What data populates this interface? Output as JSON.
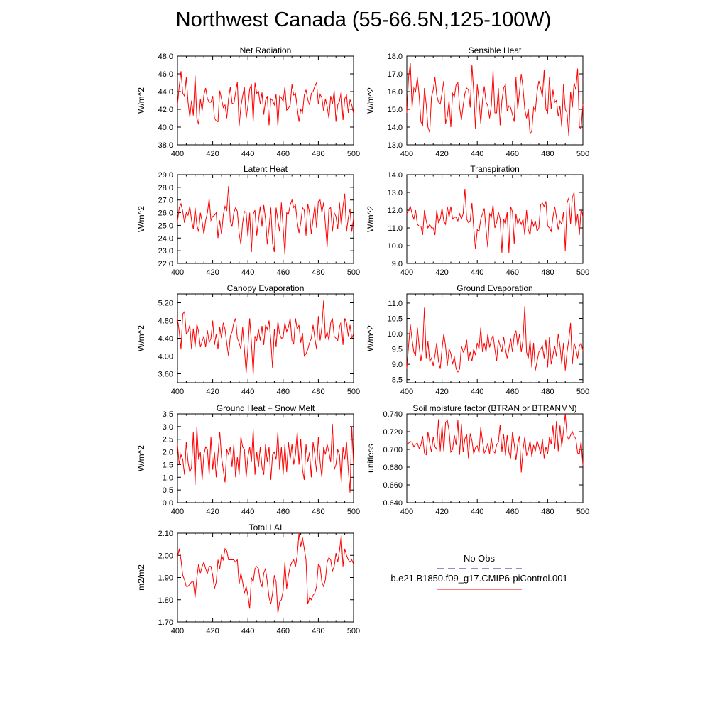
{
  "title": "Northwest Canada (55-66.5N,125-100W)",
  "legend": {
    "obs_label": "No Obs",
    "obs_color": "#1f1fa0",
    "model_label": "b.e21.B1850.f09_g17.CMIP6-piControl.001",
    "model_color": "#ff0000"
  },
  "line_color": "#ff0000",
  "chart_data": [
    {
      "type": "line",
      "title": "Net Radiation",
      "ylabel": "W/m^2",
      "xlim": [
        400,
        500
      ],
      "ylim": [
        38.0,
        48.0
      ],
      "xticks": [
        400,
        420,
        440,
        460,
        480,
        500
      ],
      "yticks": [
        "38.0",
        "40.0",
        "42.0",
        "44.0",
        "46.0",
        "48.0"
      ],
      "x_start": 400,
      "values": [
        42.5,
        44.6,
        46.3,
        43.8,
        43.5,
        45.6,
        42.8,
        41.1,
        43.0,
        41.3,
        45.8,
        41.0,
        40.3,
        43.2,
        41.8,
        43.6,
        44.4,
        43.2,
        42.8,
        42.8,
        43.5,
        41.0,
        40.7,
        40.6,
        44.1,
        43.2,
        42.2,
        42.5,
        41.0,
        43.2,
        44.5,
        42.7,
        42.6,
        43.9,
        45.1,
        40.1,
        42.3,
        43.5,
        44.5,
        41.0,
        42.4,
        44.3,
        44.8,
        40.6,
        45.0,
        43.8,
        44.0,
        42.6,
        43.9,
        41.4,
        43.0,
        43.5,
        40.2,
        43.2,
        43.0,
        42.5,
        43.7,
        40.1,
        43.5,
        43.3,
        42.9,
        44.5,
        41.9,
        42.1,
        42.5,
        44.8,
        43.6,
        43.8,
        42.2,
        40.6,
        42.0,
        41.6,
        43.6,
        44.2,
        43.1,
        42.5,
        43.8,
        44.0,
        44.6,
        45.0,
        42.6,
        43.7,
        43.3,
        41.8,
        43.2,
        42.3,
        41.0,
        43.5,
        42.6,
        44.1,
        40.6,
        42.5,
        42.9,
        44.0,
        40.8,
        43.2,
        43.6,
        41.6,
        43.1,
        42.5,
        41.5
      ]
    },
    {
      "type": "line",
      "title": "Sensible Heat",
      "ylabel": "W/m^2",
      "xlim": [
        400,
        500
      ],
      "ylim": [
        13.0,
        18.0
      ],
      "xticks": [
        400,
        420,
        440,
        460,
        480,
        500
      ],
      "yticks": [
        "13.0",
        "14.0",
        "15.0",
        "16.0",
        "17.0",
        "18.0"
      ],
      "x_start": 400,
      "values": [
        14.8,
        16.8,
        17.6,
        15.1,
        16.2,
        16.0,
        16.8,
        15.8,
        14.3,
        14.1,
        16.2,
        15.3,
        14.0,
        13.7,
        15.7,
        16.1,
        16.8,
        15.8,
        15.4,
        15.3,
        15.9,
        16.6,
        14.2,
        14.6,
        15.5,
        14.0,
        15.9,
        15.7,
        16.4,
        16.5,
        15.1,
        14.4,
        15.2,
        15.9,
        16.2,
        16.1,
        15.1,
        17.5,
        16.0,
        13.9,
        16.4,
        15.5,
        14.2,
        15.5,
        16.3,
        15.4,
        15.2,
        14.5,
        15.2,
        17.2,
        14.8,
        14.8,
        16.2,
        14.1,
        15.5,
        16.2,
        16.4,
        14.9,
        15.2,
        15.1,
        14.7,
        14.3,
        16.8,
        15.0,
        16.0,
        17.0,
        16.2,
        15.0,
        14.5,
        15.0,
        13.6,
        13.8,
        15.1,
        14.9,
        16.0,
        16.6,
        16.2,
        15.7,
        17.2,
        15.0,
        14.8,
        16.8,
        15.0,
        16.1,
        15.4,
        15.5,
        14.6,
        15.2,
        14.0,
        16.4,
        15.0,
        14.8,
        13.5,
        16.0,
        15.1,
        16.5,
        16.1,
        17.3,
        14.0,
        13.9,
        15.3
      ]
    },
    {
      "type": "line",
      "title": "Latent Heat",
      "ylabel": "W/m^2",
      "xlim": [
        400,
        500
      ],
      "ylim": [
        22.0,
        29.0
      ],
      "xticks": [
        400,
        420,
        440,
        460,
        480,
        500
      ],
      "yticks": [
        "22.0",
        "23.0",
        "24.0",
        "25.0",
        "26.0",
        "27.0",
        "28.0",
        "29.0"
      ],
      "x_start": 400,
      "values": [
        25.3,
        26.4,
        26.7,
        26.1,
        25.2,
        26.0,
        25.8,
        26.5,
        25.4,
        24.7,
        26.4,
        25.0,
        24.5,
        26.0,
        25.3,
        24.3,
        25.4,
        26.0,
        27.1,
        25.4,
        25.7,
        25.8,
        26.0,
        24.0,
        25.4,
        24.3,
        25.8,
        26.5,
        26.2,
        28.1,
        25.3,
        24.9,
        26.0,
        26.4,
        26.1,
        24.4,
        23.5,
        25.2,
        26.1,
        26.0,
        24.1,
        26.0,
        22.9,
        25.9,
        26.2,
        24.2,
        25.4,
        26.5,
        24.9,
        26.6,
        25.5,
        23.5,
        24.8,
        26.4,
        23.6,
        22.9,
        26.4,
        25.4,
        24.5,
        26.8,
        24.8,
        22.7,
        26.0,
        25.9,
        26.6,
        27.0,
        26.4,
        26.6,
        25.3,
        24.4,
        25.2,
        26.4,
        26.2,
        24.2,
        26.7,
        26.0,
        24.3,
        25.5,
        26.6,
        24.8,
        26.9,
        27.0,
        26.0,
        26.8,
        25.1,
        23.3,
        26.3,
        26.4,
        24.5,
        26.0,
        25.7,
        24.7,
        26.8,
        25.0,
        26.5,
        27.5,
        24.5,
        25.6,
        26.3,
        24.5,
        25.6
      ]
    },
    {
      "type": "line",
      "title": "Transpiration",
      "ylabel": "W/m^2",
      "xlim": [
        400,
        500
      ],
      "ylim": [
        9.0,
        14.0
      ],
      "xticks": [
        400,
        420,
        440,
        460,
        480,
        500
      ],
      "yticks": [
        "9.0",
        "10.0",
        "11.0",
        "12.0",
        "13.0",
        "14.0"
      ],
      "x_start": 400,
      "values": [
        11.8,
        12.0,
        12.2,
        11.8,
        11.5,
        12.0,
        11.2,
        11.1,
        11.1,
        10.6,
        12.0,
        11.4,
        11.0,
        11.2,
        11.0,
        11.0,
        10.6,
        12.0,
        11.3,
        11.5,
        12.1,
        11.4,
        11.2,
        12.2,
        11.6,
        12.2,
        11.5,
        11.6,
        11.6,
        11.4,
        11.8,
        11.5,
        11.8,
        13.2,
        11.5,
        11.3,
        11.4,
        12.4,
        11.0,
        9.8,
        10.9,
        10.8,
        11.5,
        11.8,
        12.1,
        10.9,
        9.9,
        11.8,
        11.6,
        12.3,
        11.0,
        11.3,
        11.9,
        11.5,
        9.6,
        11.5,
        11.2,
        11.9,
        9.6,
        12.2,
        11.9,
        10.1,
        11.8,
        11.2,
        11.5,
        11.2,
        11.5,
        10.6,
        12.0,
        10.9,
        10.6,
        11.5,
        11.1,
        11.4,
        10.8,
        11.0,
        12.3,
        12.4,
        12.2,
        12.5,
        11.1,
        11.0,
        10.8,
        11.6,
        12.2,
        11.6,
        10.9,
        11.4,
        11.2,
        11.9,
        9.7,
        12.4,
        12.7,
        11.2,
        12.7,
        13.0,
        11.1,
        11.8,
        10.6,
        12.1,
        11.6
      ]
    },
    {
      "type": "line",
      "title": "Canopy Evaporation",
      "ylabel": "W/m^2",
      "xlim": [
        400,
        500
      ],
      "ylim": [
        3.4,
        5.4
      ],
      "xticks": [
        400,
        420,
        440,
        460,
        480,
        500
      ],
      "yticks": [
        "3.60",
        "4.00",
        "4.40",
        "4.80",
        "5.20"
      ],
      "x_start": 400,
      "values": [
        4.85,
        4.55,
        4.15,
        4.95,
        5.0,
        4.5,
        4.55,
        4.7,
        4.15,
        4.62,
        4.2,
        4.72,
        4.55,
        4.2,
        4.33,
        4.45,
        4.2,
        4.58,
        4.3,
        4.4,
        4.8,
        4.25,
        4.5,
        4.15,
        4.65,
        4.4,
        4.75,
        4.6,
        4.28,
        4.0,
        4.45,
        4.55,
        4.75,
        4.85,
        4.4,
        4.3,
        4.15,
        4.65,
        4.15,
        3.62,
        4.18,
        4.85,
        4.3,
        3.58,
        4.45,
        4.35,
        4.6,
        4.35,
        4.68,
        4.25,
        4.7,
        4.6,
        4.8,
        4.35,
        3.72,
        4.6,
        4.2,
        4.78,
        4.5,
        4.4,
        4.42,
        4.75,
        4.55,
        4.65,
        4.85,
        4.35,
        4.28,
        4.85,
        4.6,
        4.7,
        4.3,
        4.52,
        4.0,
        4.05,
        4.15,
        4.3,
        4.4,
        4.7,
        4.4,
        4.15,
        4.9,
        4.35,
        4.65,
        5.25,
        4.4,
        4.55,
        4.35,
        4.75,
        4.85,
        4.45,
        4.4,
        4.35,
        4.65,
        4.78,
        4.25,
        4.85,
        4.75,
        4.45,
        4.7,
        4.4,
        4.5
      ]
    },
    {
      "type": "line",
      "title": "Ground Evaporation",
      "ylabel": "W/m^2",
      "xlim": [
        400,
        500
      ],
      "ylim": [
        8.4,
        11.3
      ],
      "xticks": [
        400,
        420,
        440,
        460,
        480,
        500
      ],
      "yticks": [
        "8.5",
        "9.0",
        "9.5",
        "10.0",
        "10.5",
        "11.0"
      ],
      "x_start": 400,
      "values": [
        8.85,
        9.6,
        10.3,
        9.8,
        9.4,
        9.3,
        10.2,
        9.6,
        9.1,
        9.5,
        10.85,
        9.2,
        9.75,
        9.1,
        9.2,
        8.95,
        9.3,
        9.7,
        9.1,
        8.85,
        9.5,
        10.0,
        9.6,
        8.95,
        9.5,
        9.35,
        9.0,
        9.25,
        8.85,
        8.75,
        8.85,
        9.6,
        9.4,
        9.5,
        9.8,
        9.1,
        9.4,
        9.1,
        9.5,
        9.3,
        9.7,
        9.5,
        10.2,
        9.4,
        9.7,
        9.4,
        10.0,
        9.55,
        9.8,
        9.95,
        9.5,
        9.1,
        9.8,
        9.6,
        9.4,
        9.9,
        9.5,
        9.2,
        9.5,
        9.85,
        9.4,
        9.95,
        10.1,
        9.6,
        10.0,
        9.4,
        9.8,
        10.9,
        9.4,
        9.2,
        9.8,
        8.9,
        9.7,
        8.8,
        9.1,
        9.4,
        9.5,
        9.6,
        9.2,
        9.8,
        8.9,
        9.9,
        9.0,
        9.3,
        9.6,
        9.25,
        10.0,
        9.6,
        9.0,
        9.7,
        8.8,
        9.4,
        9.8,
        10.35,
        9.0,
        9.7,
        9.5,
        9.2,
        9.6,
        9.7,
        9.45
      ]
    },
    {
      "type": "line",
      "title": "Ground Heat + Snow Melt",
      "ylabel": "W/m^2",
      "xlim": [
        400,
        500
      ],
      "ylim": [
        0.0,
        3.5
      ],
      "xticks": [
        400,
        420,
        440,
        460,
        480,
        500
      ],
      "yticks": [
        "0.0",
        "0.5",
        "1.0",
        "1.5",
        "2.0",
        "2.5",
        "3.0",
        "3.5"
      ],
      "x_start": 400,
      "values": [
        2.3,
        1.5,
        1.9,
        1.7,
        1.1,
        2.4,
        1.6,
        1.2,
        1.4,
        2.8,
        0.7,
        3.0,
        1.7,
        2.0,
        0.9,
        1.9,
        2.2,
        2.1,
        1.1,
        2.6,
        1.3,
        2.0,
        1.0,
        1.9,
        2.8,
        1.8,
        1.3,
        0.8,
        2.1,
        1.9,
        2.2,
        1.4,
        2.3,
        1.0,
        1.8,
        1.1,
        2.6,
        2.2,
        2.1,
        1.0,
        1.8,
        2.2,
        1.6,
        2.9,
        1.1,
        2.0,
        1.4,
        2.2,
        1.4,
        1.1,
        2.3,
        1.6,
        2.2,
        0.9,
        1.9,
        2.0,
        1.7,
        2.8,
        1.3,
        2.2,
        1.1,
        2.3,
        1.2,
        2.4,
        1.7,
        2.3,
        1.5,
        1.9,
        2.8,
        1.5,
        2.5,
        1.3,
        0.9,
        2.3,
        1.6,
        2.0,
        1.0,
        2.4,
        1.9,
        1.2,
        2.6,
        1.6,
        1.0,
        2.2,
        1.9,
        2.3,
        2.0,
        1.6,
        3.1,
        1.3,
        1.5,
        2.1,
        1.9,
        0.8,
        2.2,
        1.7,
        2.4,
        1.3,
        0.4,
        3.0,
        1.5
      ]
    },
    {
      "type": "line",
      "title": "Soil moisture factor (BTRAN or BTRANMN)",
      "ylabel": "unitless",
      "xlim": [
        400,
        500
      ],
      "ylim": [
        0.64,
        0.74
      ],
      "xticks": [
        400,
        420,
        440,
        460,
        480,
        500
      ],
      "yticks": [
        "0.640",
        "0.660",
        "0.680",
        "0.700",
        "0.720",
        "0.740"
      ],
      "x_start": 400,
      "values": [
        0.706,
        0.707,
        0.709,
        0.708,
        0.703,
        0.706,
        0.707,
        0.701,
        0.705,
        0.715,
        0.696,
        0.694,
        0.72,
        0.707,
        0.697,
        0.714,
        0.703,
        0.7,
        0.734,
        0.698,
        0.727,
        0.698,
        0.73,
        0.733,
        0.721,
        0.697,
        0.7,
        0.716,
        0.705,
        0.733,
        0.694,
        0.729,
        0.697,
        0.712,
        0.717,
        0.69,
        0.718,
        0.71,
        0.695,
        0.702,
        0.704,
        0.696,
        0.725,
        0.709,
        0.696,
        0.7,
        0.707,
        0.695,
        0.713,
        0.698,
        0.696,
        0.705,
        0.708,
        0.728,
        0.697,
        0.717,
        0.693,
        0.716,
        0.697,
        0.69,
        0.72,
        0.706,
        0.688,
        0.706,
        0.715,
        0.674,
        0.7,
        0.714,
        0.693,
        0.699,
        0.71,
        0.692,
        0.705,
        0.698,
        0.71,
        0.703,
        0.695,
        0.712,
        0.69,
        0.703,
        0.695,
        0.714,
        0.706,
        0.727,
        0.7,
        0.732,
        0.698,
        0.727,
        0.703,
        0.721,
        0.74,
        0.715,
        0.711,
        0.716,
        0.72,
        0.715,
        0.712,
        0.696,
        0.695,
        0.709,
        0.682
      ]
    },
    {
      "type": "line",
      "title": "Total LAI",
      "ylabel": "m2/m2",
      "xlim": [
        400,
        500
      ],
      "ylim": [
        1.7,
        2.1
      ],
      "xticks": [
        400,
        420,
        440,
        460,
        480,
        500
      ],
      "yticks": [
        "1.70",
        "1.80",
        "1.90",
        "2.00",
        "2.10"
      ],
      "x_start": 400,
      "values": [
        1.99,
        2.03,
        1.98,
        1.91,
        1.89,
        1.86,
        1.86,
        1.87,
        1.88,
        1.88,
        1.81,
        1.9,
        1.96,
        1.92,
        1.95,
        1.97,
        1.94,
        1.92,
        1.95,
        1.95,
        1.91,
        1.85,
        1.88,
        1.98,
        1.94,
        2.0,
        1.98,
        2.03,
        2.02,
        1.98,
        1.98,
        1.98,
        1.98,
        1.97,
        1.98,
        1.87,
        1.92,
        1.88,
        1.83,
        1.86,
        1.82,
        1.76,
        1.9,
        1.88,
        1.94,
        1.95,
        1.94,
        1.88,
        1.86,
        1.92,
        1.94,
        1.88,
        1.81,
        1.78,
        1.83,
        1.91,
        1.88,
        1.74,
        1.79,
        1.8,
        1.84,
        1.97,
        1.85,
        1.91,
        1.95,
        1.97,
        1.98,
        1.95,
        2.0,
        2.1,
        2.04,
        2.08,
        2.03,
        1.98,
        1.78,
        1.81,
        1.8,
        1.82,
        1.83,
        1.86,
        1.96,
        1.95,
        1.88,
        1.86,
        1.89,
        1.97,
        1.99,
        1.98,
        1.93,
        1.95,
        2.01,
        1.97,
        2.02,
        2.09,
        1.95,
        2.03,
        2.0,
        1.98,
        1.97,
        1.98,
        1.96
      ]
    }
  ]
}
